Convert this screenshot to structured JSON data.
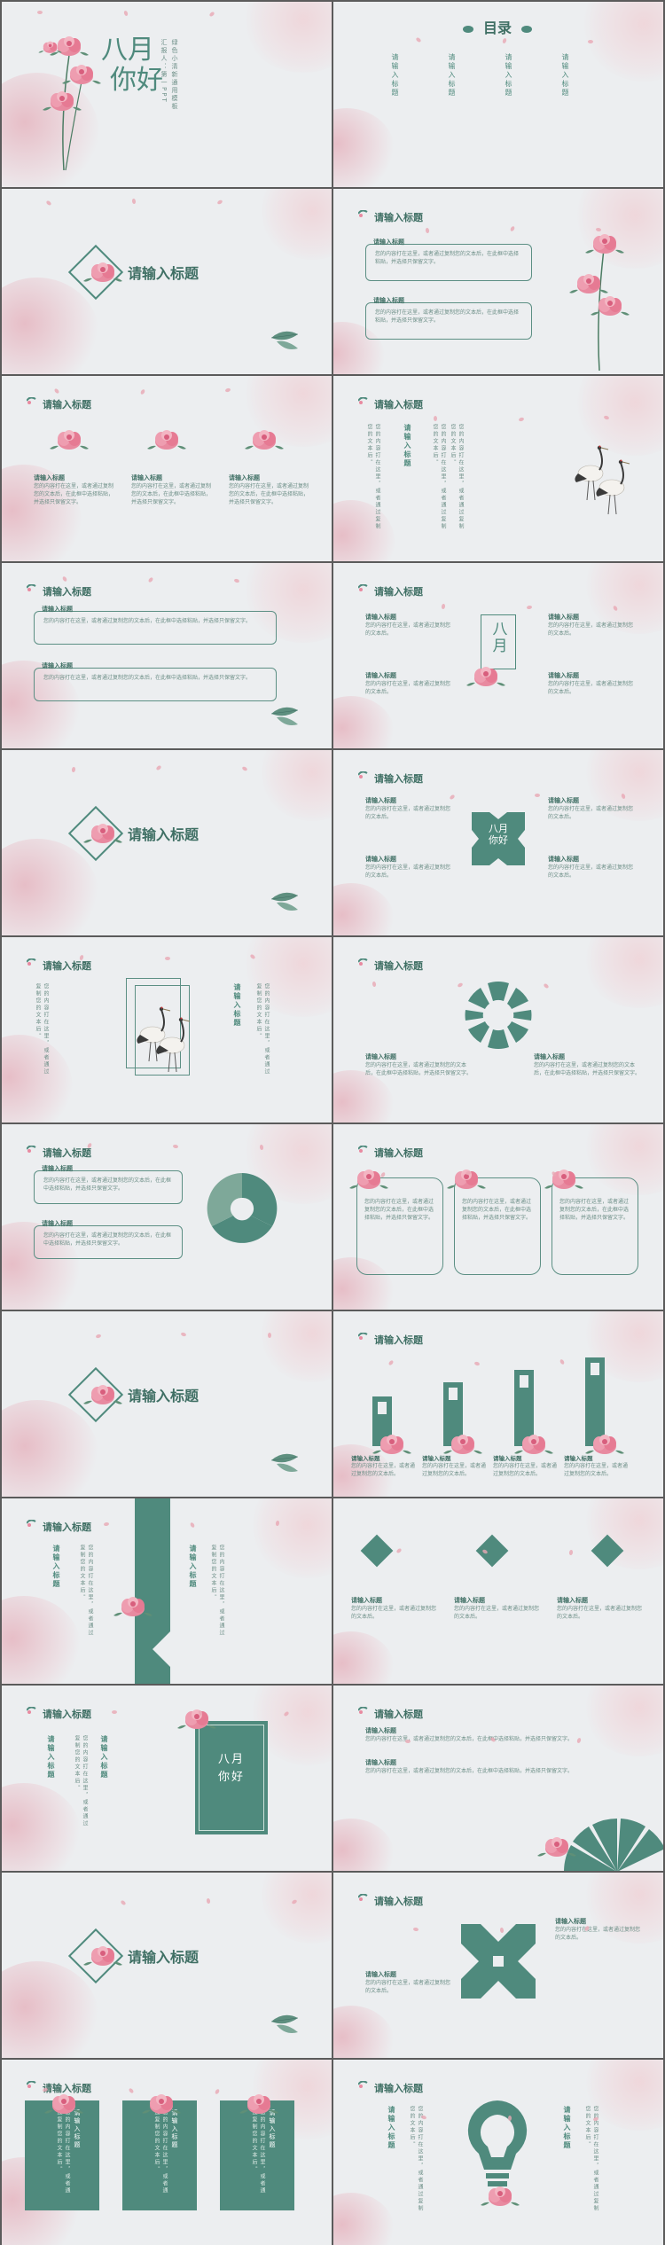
{
  "colors": {
    "accent": "#4f8a7d",
    "pink": "#e66f8a",
    "bg": "#eceef0"
  },
  "cover": {
    "title_a": "八月",
    "title_b": "你好",
    "subtitle": "绿色小清新通用模板",
    "subtitle2": "汇报人：第一PPT"
  },
  "toc": {
    "title": "目录",
    "items": [
      "请输入标题",
      "请输入标题",
      "请输入标题",
      "请输入标题"
    ]
  },
  "section_title": "请输入标题",
  "slide_title": "请输入标题",
  "sub_title": "请输入标题",
  "body_text": "您的内容打在这里，或者通过复制您的文本后，在此框中选择粘贴，并选择只保留文字。",
  "body_short": "您的内容打在这里，或者通过复制您的文本后。",
  "vertical_words": {
    "aug": "八月",
    "hello": "八月你好",
    "hello_a": "八月",
    "hello_b": "你好"
  }
}
